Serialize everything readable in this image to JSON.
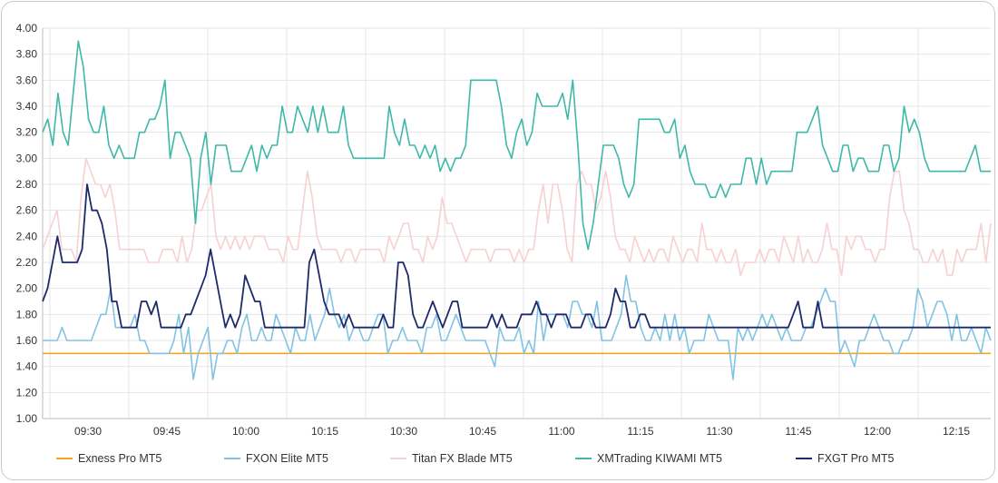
{
  "chart_data": {
    "type": "line",
    "ylim": [
      1.0,
      4.0
    ],
    "yticks": [
      "1.00",
      "1.20",
      "1.40",
      "1.60",
      "1.80",
      "2.00",
      "2.20",
      "2.40",
      "2.60",
      "2.80",
      "3.00",
      "3.20",
      "3.40",
      "3.60",
      "3.80",
      "4.00"
    ],
    "xticks": [
      "09:30",
      "09:45",
      "10:00",
      "10:15",
      "10:30",
      "10:45",
      "11:00",
      "11:15",
      "11:30",
      "11:45",
      "12:00",
      "12:15"
    ],
    "grid": true,
    "legend_position": "bottom",
    "series": [
      {
        "name": "Exness Pro MT5",
        "color": "#f5a623",
        "values": [
          1.5,
          1.5,
          1.5,
          1.5,
          1.5,
          1.5,
          1.5,
          1.5,
          1.5,
          1.5,
          1.5,
          1.5,
          1.5,
          1.5,
          1.5,
          1.5,
          1.5,
          1.5,
          1.5,
          1.5,
          1.5,
          1.5,
          1.5,
          1.5,
          1.5,
          1.5,
          1.5,
          1.5,
          1.5,
          1.5,
          1.5,
          1.5,
          1.5,
          1.5,
          1.5,
          1.5,
          1.5,
          1.5,
          1.5,
          1.5,
          1.5,
          1.5,
          1.5,
          1.5,
          1.5,
          1.5,
          1.5,
          1.5,
          1.5,
          1.5,
          1.5,
          1.5,
          1.5,
          1.5,
          1.5,
          1.5,
          1.5,
          1.5,
          1.5,
          1.5,
          1.5,
          1.5,
          1.5,
          1.5,
          1.5,
          1.5,
          1.5,
          1.5,
          1.5,
          1.5,
          1.5,
          1.5,
          1.5,
          1.5,
          1.5,
          1.5,
          1.5,
          1.5,
          1.5,
          1.5,
          1.5,
          1.5,
          1.5,
          1.5,
          1.5,
          1.5,
          1.5,
          1.5,
          1.5,
          1.5,
          1.5,
          1.5,
          1.5,
          1.5,
          1.5,
          1.5,
          1.5,
          1.5,
          1.5,
          1.5,
          1.5,
          1.5,
          1.5,
          1.5,
          1.5,
          1.5,
          1.5,
          1.5,
          1.5,
          1.5,
          1.5,
          1.5,
          1.5,
          1.5,
          1.5,
          1.5,
          1.5,
          1.5,
          1.5,
          1.5,
          1.5,
          1.5,
          1.5,
          1.5,
          1.5,
          1.5,
          1.5,
          1.5,
          1.5,
          1.5,
          1.5,
          1.5,
          1.5,
          1.5,
          1.5,
          1.5,
          1.5,
          1.5,
          1.5,
          1.5,
          1.5,
          1.5,
          1.5,
          1.5,
          1.5,
          1.5,
          1.5,
          1.5,
          1.5,
          1.5,
          1.5,
          1.5,
          1.5,
          1.5,
          1.5,
          1.5,
          1.5,
          1.5,
          1.5,
          1.5,
          1.5,
          1.5,
          1.5,
          1.5,
          1.5,
          1.5,
          1.5,
          1.5,
          1.5,
          1.5,
          1.5,
          1.5,
          1.5,
          1.5,
          1.5,
          1.5,
          1.5,
          1.5,
          1.5,
          1.5,
          1.5,
          1.5,
          1.5,
          1.5,
          1.5,
          1.5,
          1.5,
          1.5,
          1.5,
          1.5,
          1.5,
          1.5,
          1.5,
          1.5,
          1.5,
          1.5
        ]
      },
      {
        "name": "FXON Elite MT5",
        "color": "#82c3e3",
        "values": [
          1.6,
          1.6,
          1.6,
          1.6,
          1.7,
          1.6,
          1.6,
          1.6,
          1.6,
          1.6,
          1.6,
          1.7,
          1.8,
          1.8,
          2.0,
          1.7,
          1.7,
          1.7,
          1.7,
          1.8,
          1.6,
          1.6,
          1.5,
          1.5,
          1.5,
          1.5,
          1.5,
          1.6,
          1.8,
          1.5,
          1.7,
          1.3,
          1.5,
          1.6,
          1.7,
          1.3,
          1.5,
          1.5,
          1.6,
          1.6,
          1.5,
          1.7,
          1.8,
          1.6,
          1.6,
          1.7,
          1.6,
          1.6,
          1.8,
          1.7,
          1.6,
          1.5,
          1.7,
          1.6,
          1.6,
          1.8,
          1.6,
          1.7,
          1.8,
          2.0,
          1.8,
          1.7,
          1.8,
          1.6,
          1.7,
          1.7,
          1.6,
          1.6,
          1.7,
          1.8,
          1.8,
          1.5,
          1.6,
          1.6,
          1.7,
          1.6,
          1.6,
          1.6,
          1.5,
          1.7,
          1.7,
          1.8,
          1.6,
          1.6,
          1.7,
          1.8,
          1.7,
          1.6,
          1.6,
          1.6,
          1.6,
          1.6,
          1.5,
          1.4,
          1.7,
          1.6,
          1.6,
          1.6,
          1.7,
          1.5,
          1.6,
          1.5,
          1.9,
          1.6,
          1.8,
          1.8,
          1.8,
          1.8,
          1.7,
          1.9,
          1.9,
          1.8,
          1.8,
          1.7,
          1.9,
          1.6,
          1.6,
          1.6,
          1.7,
          1.8,
          2.1,
          1.9,
          1.9,
          1.7,
          1.6,
          1.6,
          1.7,
          1.6,
          1.8,
          1.6,
          1.8,
          1.6,
          1.7,
          1.5,
          1.6,
          1.6,
          1.6,
          1.8,
          1.7,
          1.6,
          1.6,
          1.6,
          1.3,
          1.7,
          1.6,
          1.7,
          1.6,
          1.7,
          1.8,
          1.7,
          1.8,
          1.7,
          1.6,
          1.7,
          1.6,
          1.6,
          1.6,
          1.7,
          1.7,
          1.8,
          1.9,
          2.0,
          1.9,
          1.9,
          1.5,
          1.6,
          1.5,
          1.4,
          1.6,
          1.6,
          1.7,
          1.8,
          1.7,
          1.6,
          1.6,
          1.5,
          1.5,
          1.6,
          1.6,
          1.7,
          2.0,
          1.9,
          1.7,
          1.8,
          1.9,
          1.9,
          1.8,
          1.6,
          1.8,
          1.6,
          1.6,
          1.7,
          1.6,
          1.5,
          1.7,
          1.6
        ]
      },
      {
        "name": "Titan FX Blade MT5",
        "color": "#f7d1d1",
        "values": [
          2.3,
          2.4,
          2.5,
          2.6,
          2.3,
          2.3,
          2.3,
          2.2,
          2.7,
          3.0,
          2.9,
          2.8,
          2.8,
          2.7,
          2.8,
          2.6,
          2.3,
          2.3,
          2.3,
          2.3,
          2.3,
          2.3,
          2.2,
          2.2,
          2.2,
          2.3,
          2.3,
          2.3,
          2.2,
          2.4,
          2.2,
          2.3,
          2.6,
          2.6,
          2.7,
          2.8,
          2.4,
          2.3,
          2.4,
          2.3,
          2.4,
          2.3,
          2.4,
          2.3,
          2.4,
          2.4,
          2.4,
          2.3,
          2.3,
          2.3,
          2.2,
          2.4,
          2.3,
          2.3,
          2.6,
          2.9,
          2.7,
          2.4,
          2.3,
          2.3,
          2.3,
          2.3,
          2.2,
          2.3,
          2.3,
          2.2,
          2.3,
          2.3,
          2.3,
          2.3,
          2.3,
          2.2,
          2.4,
          2.3,
          2.4,
          2.5,
          2.5,
          2.3,
          2.3,
          2.2,
          2.4,
          2.3,
          2.4,
          2.7,
          2.5,
          2.5,
          2.4,
          2.3,
          2.2,
          2.3,
          2.3,
          2.3,
          2.3,
          2.2,
          2.3,
          2.3,
          2.3,
          2.3,
          2.2,
          2.3,
          2.2,
          2.3,
          2.3,
          2.6,
          2.8,
          2.5,
          2.8,
          2.8,
          2.6,
          2.3,
          2.2,
          2.8,
          2.9,
          2.8,
          2.8,
          2.6,
          2.7,
          2.9,
          2.7,
          2.4,
          2.3,
          2.3,
          2.2,
          2.4,
          2.3,
          2.2,
          2.3,
          2.2,
          2.3,
          2.3,
          2.2,
          2.4,
          2.3,
          2.2,
          2.3,
          2.3,
          2.2,
          2.5,
          2.3,
          2.3,
          2.2,
          2.3,
          2.2,
          2.2,
          2.3,
          2.1,
          2.2,
          2.2,
          2.2,
          2.3,
          2.2,
          2.3,
          2.3,
          2.2,
          2.4,
          2.3,
          2.2,
          2.4,
          2.2,
          2.3,
          2.2,
          2.2,
          2.3,
          2.5,
          2.3,
          2.3,
          2.1,
          2.4,
          2.3,
          2.4,
          2.4,
          2.3,
          2.3,
          2.2,
          2.3,
          2.3,
          2.7,
          2.9,
          2.9,
          2.6,
          2.5,
          2.3,
          2.3,
          2.2,
          2.2,
          2.3,
          2.2,
          2.3,
          2.1,
          2.1,
          2.3,
          2.2,
          2.3,
          2.3,
          2.3,
          2.5,
          2.2,
          2.5
        ]
      },
      {
        "name": "XMTrading KIWAMI MT5",
        "color": "#3fb8a8",
        "values": [
          3.2,
          3.3,
          3.1,
          3.5,
          3.2,
          3.1,
          3.5,
          3.9,
          3.7,
          3.3,
          3.2,
          3.2,
          3.4,
          3.1,
          3.0,
          3.1,
          3.0,
          3.0,
          3.0,
          3.2,
          3.2,
          3.3,
          3.3,
          3.4,
          3.6,
          3.0,
          3.2,
          3.2,
          3.1,
          3.0,
          2.5,
          3.0,
          3.2,
          2.8,
          3.1,
          3.1,
          3.1,
          2.9,
          2.9,
          2.9,
          3.0,
          3.1,
          2.9,
          3.1,
          3.0,
          3.1,
          3.1,
          3.4,
          3.2,
          3.2,
          3.4,
          3.3,
          3.2,
          3.4,
          3.2,
          3.4,
          3.2,
          3.2,
          3.2,
          3.4,
          3.1,
          3.0,
          3.0,
          3.0,
          3.0,
          3.0,
          3.0,
          3.0,
          3.4,
          3.2,
          3.1,
          3.3,
          3.1,
          3.1,
          3.0,
          3.1,
          3.0,
          3.1,
          2.9,
          3.0,
          2.9,
          3.0,
          3.0,
          3.1,
          3.6,
          3.6,
          3.6,
          3.6,
          3.6,
          3.6,
          3.4,
          3.1,
          3.0,
          3.2,
          3.3,
          3.1,
          3.2,
          3.5,
          3.4,
          3.4,
          3.4,
          3.4,
          3.5,
          3.3,
          3.6,
          3.1,
          2.5,
          2.3,
          2.5,
          2.8,
          3.1,
          3.1,
          3.1,
          3.0,
          2.8,
          2.7,
          2.8,
          3.3,
          3.3,
          3.3,
          3.3,
          3.3,
          3.2,
          3.2,
          3.3,
          3.0,
          3.1,
          2.9,
          2.8,
          2.8,
          2.8,
          2.7,
          2.7,
          2.8,
          2.7,
          2.8,
          2.8,
          2.8,
          3.0,
          3.0,
          2.8,
          3.0,
          2.8,
          2.9,
          2.9,
          2.9,
          2.9,
          2.9,
          3.2,
          3.2,
          3.2,
          3.3,
          3.4,
          3.1,
          3.0,
          2.9,
          2.9,
          3.1,
          3.1,
          2.9,
          3.0,
          3.0,
          2.9,
          2.9,
          2.9,
          3.1,
          3.1,
          2.9,
          3.0,
          3.4,
          3.2,
          3.3,
          3.2,
          3.0,
          2.9,
          2.9,
          2.9,
          2.9,
          2.9,
          2.9,
          2.9,
          2.9,
          3.0,
          3.1,
          2.9,
          2.9,
          2.9
        ]
      },
      {
        "name": "FXGT Pro MT5",
        "color": "#1f2a6b",
        "values": [
          1.9,
          2.0,
          2.2,
          2.4,
          2.2,
          2.2,
          2.2,
          2.2,
          2.3,
          2.8,
          2.6,
          2.6,
          2.5,
          2.3,
          1.9,
          1.9,
          1.7,
          1.7,
          1.7,
          1.7,
          1.9,
          1.9,
          1.8,
          1.9,
          1.7,
          1.7,
          1.7,
          1.7,
          1.7,
          1.8,
          1.8,
          1.9,
          2.0,
          2.1,
          2.3,
          2.1,
          1.9,
          1.7,
          1.8,
          1.7,
          1.8,
          2.1,
          2.0,
          1.9,
          1.9,
          1.7,
          1.7,
          1.7,
          1.7,
          1.7,
          1.7,
          1.7,
          1.7,
          1.7,
          2.2,
          2.3,
          2.1,
          1.9,
          1.8,
          1.8,
          1.8,
          1.7,
          1.8,
          1.7,
          1.7,
          1.7,
          1.7,
          1.7,
          1.7,
          1.8,
          1.7,
          1.7,
          2.2,
          2.2,
          2.1,
          1.8,
          1.7,
          1.7,
          1.8,
          1.9,
          1.8,
          1.7,
          1.8,
          1.9,
          1.9,
          1.7,
          1.7,
          1.7,
          1.7,
          1.7,
          1.7,
          1.8,
          1.7,
          1.8,
          1.7,
          1.7,
          1.7,
          1.8,
          1.8,
          1.8,
          1.9,
          1.8,
          1.8,
          1.7,
          1.8,
          1.8,
          1.8,
          1.7,
          1.7,
          1.7,
          1.8,
          1.8,
          1.7,
          1.7,
          1.7,
          1.8,
          2.0,
          1.9,
          1.9,
          1.7,
          1.7,
          1.8,
          1.8,
          1.7,
          1.7,
          1.7,
          1.7,
          1.7,
          1.7,
          1.7,
          1.7,
          1.7,
          1.7,
          1.7,
          1.7,
          1.7,
          1.7,
          1.7,
          1.7,
          1.7,
          1.7,
          1.7,
          1.7,
          1.7,
          1.7,
          1.7,
          1.7,
          1.7,
          1.7,
          1.7,
          1.7,
          1.7,
          1.8,
          1.9,
          1.7,
          1.7,
          1.7,
          1.9,
          1.7,
          1.7,
          1.7,
          1.7,
          1.7,
          1.7,
          1.7,
          1.7,
          1.7,
          1.7,
          1.7,
          1.7,
          1.7,
          1.7,
          1.7,
          1.7,
          1.7,
          1.7,
          1.7,
          1.7,
          1.7,
          1.7,
          1.7,
          1.7,
          1.7,
          1.7,
          1.7,
          1.7,
          1.7,
          1.7,
          1.7,
          1.7,
          1.7,
          1.7,
          1.7
        ]
      }
    ]
  }
}
